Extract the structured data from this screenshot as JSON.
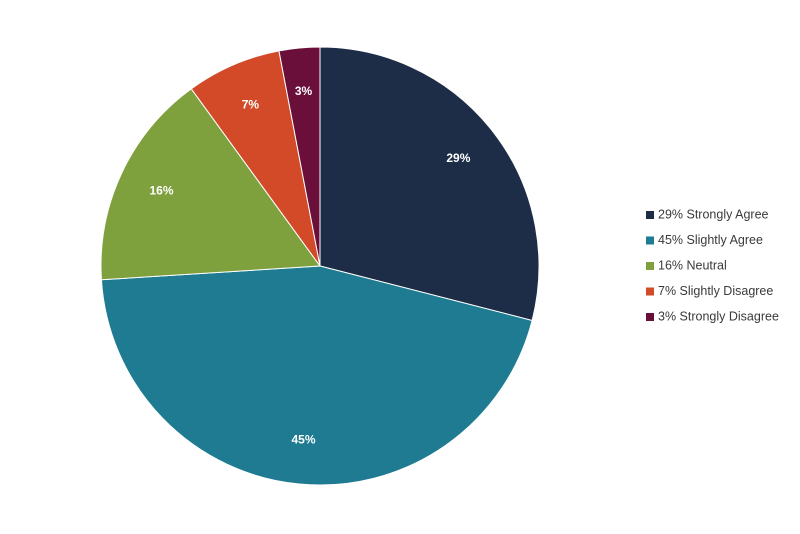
{
  "chart_data": {
    "type": "pie",
    "title": "",
    "legend_position": "right",
    "start_angle_deg": 0,
    "direction": "clockwise",
    "slices": [
      {
        "value": 29,
        "data_label": "29%",
        "legend_label": "29% Strongly Agree",
        "color": "#1e2d47"
      },
      {
        "value": 45,
        "data_label": "45%",
        "legend_label": "45% Slightly Agree",
        "color": "#1e7b91"
      },
      {
        "value": 16,
        "data_label": "16%",
        "legend_label": "16% Neutral",
        "color": "#7ea03d"
      },
      {
        "value": 7,
        "data_label": "7%",
        "legend_label": "7% Slightly Disagree",
        "color": "#d24a28"
      },
      {
        "value": 3,
        "data_label": "3%",
        "legend_label": "3% Strongly Disagree",
        "color": "#6a0f3a"
      }
    ]
  }
}
